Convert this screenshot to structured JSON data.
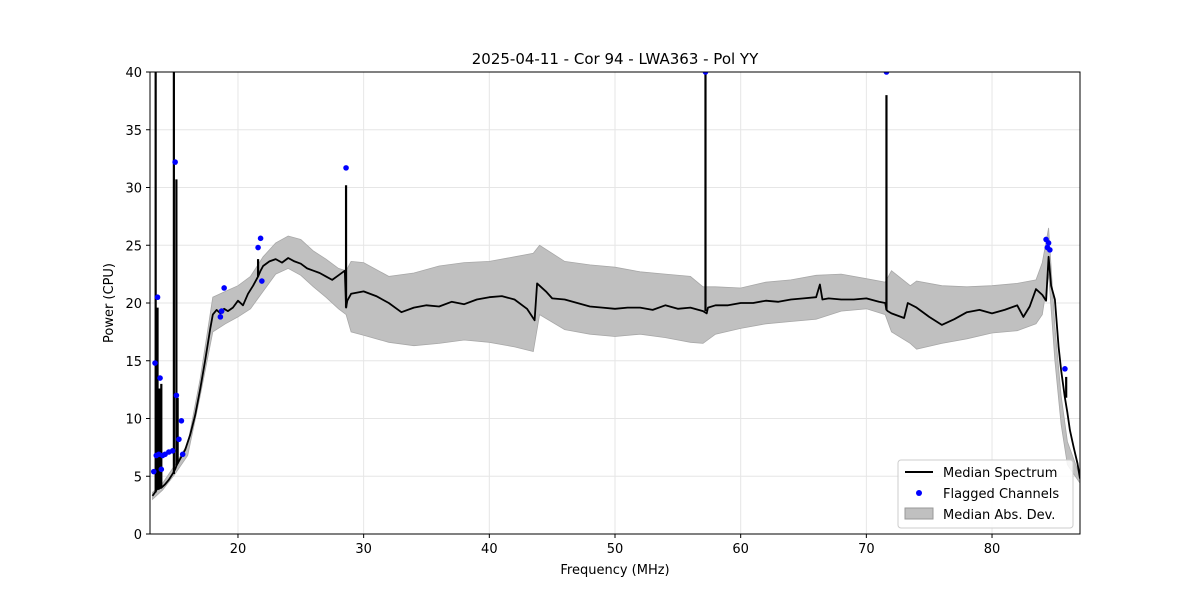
{
  "figure": {
    "title": "2025-04-11 - Cor 94 - LWA363 - Pol YY",
    "xlabel": "Frequency (MHz)",
    "ylabel": "Power (CPU)"
  },
  "legend": {
    "items": [
      {
        "key": "median",
        "label": "Median Spectrum"
      },
      {
        "key": "flagged",
        "label": "Flagged Channels"
      },
      {
        "key": "mad",
        "label": "Median Abs. Dev."
      }
    ]
  },
  "chart_data": {
    "type": "line",
    "title": "2025-04-11 - Cor 94 - LWA363 - Pol YY",
    "xlabel": "Frequency (MHz)",
    "ylabel": "Power (CPU)",
    "xlim": [
      13,
      87
    ],
    "ylim": [
      0,
      40
    ],
    "xticks": [
      20,
      30,
      40,
      50,
      60,
      70,
      80
    ],
    "yticks": [
      0,
      5,
      10,
      15,
      20,
      25,
      30,
      35,
      40
    ],
    "grid": true,
    "legend_position": "lower-right",
    "colors": {
      "median": "#000000",
      "flagged": "#0000ff",
      "mad": "#c0c0c0"
    },
    "series": [
      {
        "name": "Median Spectrum",
        "type": "line",
        "x": [
          13.2,
          13.4,
          13.5,
          13.6,
          13.7,
          13.8,
          13.9,
          14.0,
          14.2,
          14.5,
          14.8,
          15.0,
          15.1,
          15.2,
          15.3,
          15.5,
          15.8,
          16.2,
          16.6,
          17.0,
          17.4,
          17.8,
          18.0,
          18.3,
          18.6,
          18.9,
          19.2,
          19.6,
          20.0,
          20.4,
          20.8,
          21.2,
          21.6,
          21.8,
          22.0,
          22.5,
          23.0,
          23.5,
          24.0,
          24.5,
          25.0,
          25.5,
          26.0,
          26.5,
          27.0,
          27.5,
          28.0,
          28.5,
          28.6,
          28.7,
          29.0,
          30.0,
          31.0,
          32.0,
          33.0,
          34.0,
          35.0,
          36.0,
          37.0,
          38.0,
          39.0,
          40.0,
          41.0,
          42.0,
          43.0,
          43.6,
          43.8,
          44.5,
          45.0,
          46.0,
          47.0,
          48.0,
          49.0,
          50.0,
          51.0,
          52.0,
          53.0,
          54.0,
          55.0,
          56.0,
          57.0,
          57.3,
          57.4,
          58.0,
          59.0,
          60.0,
          61.0,
          62.0,
          63.0,
          64.0,
          65.0,
          66.0,
          66.3,
          66.5,
          67.0,
          68.0,
          69.0,
          70.0,
          71.0,
          71.5,
          71.6,
          71.7,
          72.0,
          73.0,
          73.3,
          74.0,
          75.0,
          76.0,
          77.0,
          78.0,
          79.0,
          80.0,
          81.0,
          82.0,
          82.5,
          83.0,
          83.5,
          84.0,
          84.3,
          84.5,
          84.7,
          85.0,
          85.3,
          85.5,
          85.8,
          86.0,
          86.2,
          86.5,
          86.8,
          87.0
        ],
        "y": [
          3.3,
          3.6,
          3.8,
          3.9,
          3.9,
          4.0,
          4.0,
          4.1,
          4.3,
          4.7,
          5.2,
          5.6,
          5.9,
          6.1,
          6.3,
          6.7,
          7.3,
          8.6,
          10.3,
          12.6,
          15.1,
          17.8,
          19.0,
          19.4,
          19.1,
          19.5,
          19.3,
          19.6,
          20.2,
          19.8,
          20.8,
          21.5,
          22.3,
          22.8,
          23.2,
          23.6,
          23.8,
          23.5,
          23.9,
          23.6,
          23.4,
          23.0,
          22.8,
          22.6,
          22.3,
          22.0,
          22.4,
          22.8,
          19.6,
          20.2,
          20.8,
          21.0,
          20.6,
          20.0,
          19.2,
          19.6,
          19.8,
          19.7,
          20.1,
          19.9,
          20.3,
          20.5,
          20.6,
          20.3,
          19.5,
          18.5,
          21.7,
          21.0,
          20.4,
          20.3,
          20.0,
          19.7,
          19.6,
          19.5,
          19.6,
          19.6,
          19.4,
          19.8,
          19.5,
          19.6,
          19.3,
          19.1,
          19.6,
          19.8,
          19.8,
          20.0,
          20.0,
          20.2,
          20.1,
          20.3,
          20.4,
          20.5,
          21.6,
          20.3,
          20.4,
          20.3,
          20.3,
          20.4,
          20.1,
          20.0,
          19.4,
          19.3,
          19.1,
          18.7,
          20.0,
          19.6,
          18.8,
          18.1,
          18.6,
          19.2,
          19.4,
          19.1,
          19.4,
          19.8,
          18.8,
          19.7,
          21.2,
          20.7,
          20.2,
          24.0,
          21.5,
          20.3,
          16.2,
          14.2,
          11.8,
          10.5,
          9.0,
          7.5,
          6.1,
          4.8
        ]
      },
      {
        "name": "Flagged Channels",
        "type": "scatter",
        "x": [
          13.3,
          13.4,
          13.5,
          13.6,
          13.7,
          13.8,
          13.9,
          14.0,
          14.2,
          14.5,
          14.8,
          15.0,
          15.1,
          15.3,
          15.5,
          15.6,
          18.6,
          18.7,
          18.9,
          21.6,
          21.8,
          21.9,
          28.6,
          57.2,
          71.6,
          84.3,
          84.4,
          84.5,
          84.6,
          85.8
        ],
        "y": [
          5.4,
          14.8,
          6.8,
          20.5,
          6.9,
          13.5,
          5.6,
          6.8,
          6.9,
          7.1,
          7.2,
          32.2,
          12.0,
          8.2,
          9.8,
          6.9,
          18.8,
          19.3,
          21.3,
          24.8,
          25.6,
          21.9,
          31.7,
          40.0,
          40.0,
          25.5,
          24.8,
          25.2,
          24.6,
          14.3
        ]
      },
      {
        "name": "Median Abs. Dev.",
        "type": "area",
        "x": [
          13.2,
          14.0,
          15.0,
          16.0,
          17.0,
          18.0,
          19.0,
          20.0,
          21.0,
          22.0,
          23.0,
          24.0,
          25.0,
          26.0,
          27.0,
          28.0,
          28.6,
          29.0,
          30.0,
          32.0,
          34.0,
          36.0,
          38.0,
          40.0,
          42.0,
          43.5,
          44.0,
          46.0,
          48.0,
          50.0,
          52.0,
          54.0,
          56.0,
          57.0,
          58.0,
          60.0,
          62.0,
          64.0,
          66.0,
          68.0,
          70.0,
          71.5,
          72.0,
          73.5,
          74.0,
          76.0,
          78.0,
          80.0,
          82.0,
          83.5,
          84.0,
          84.5,
          85.0,
          85.5,
          86.0,
          87.0
        ],
        "y_low": [
          3.0,
          3.8,
          5.2,
          6.8,
          12.0,
          17.5,
          18.2,
          18.8,
          19.5,
          21.0,
          22.5,
          23.0,
          22.4,
          21.4,
          20.5,
          19.5,
          19.0,
          17.5,
          17.2,
          16.6,
          16.3,
          16.5,
          16.8,
          16.6,
          16.2,
          15.8,
          19.0,
          17.7,
          17.3,
          17.1,
          17.3,
          17.0,
          16.6,
          16.5,
          17.3,
          17.8,
          18.2,
          18.4,
          18.6,
          19.3,
          19.5,
          19.0,
          17.5,
          16.5,
          16.0,
          16.5,
          16.9,
          17.4,
          17.6,
          18.2,
          19.0,
          22.5,
          15.0,
          9.5,
          6.0,
          4.4
        ],
        "y_high": [
          3.6,
          4.4,
          6.0,
          7.8,
          13.5,
          20.5,
          21.0,
          21.5,
          22.3,
          24.0,
          25.2,
          25.8,
          25.5,
          24.5,
          23.8,
          23.0,
          22.8,
          23.6,
          23.5,
          22.3,
          22.6,
          23.2,
          23.5,
          23.6,
          24.0,
          24.3,
          25.0,
          23.6,
          23.3,
          23.1,
          22.7,
          22.5,
          22.3,
          21.4,
          21.4,
          21.3,
          21.8,
          22.0,
          22.4,
          22.5,
          22.1,
          21.8,
          22.8,
          21.5,
          21.9,
          21.5,
          21.4,
          21.5,
          21.7,
          22.0,
          23.5,
          26.5,
          18.0,
          12.0,
          8.0,
          5.0
        ]
      }
    ],
    "spikes": [
      {
        "x": 13.45,
        "y": 40.0
      },
      {
        "x": 13.6,
        "y": 19.6
      },
      {
        "x": 13.75,
        "y": 12.6
      },
      {
        "x": 13.9,
        "y": 13.0
      },
      {
        "x": 14.9,
        "y": 40.0
      },
      {
        "x": 15.1,
        "y": 30.7
      },
      {
        "x": 15.2,
        "y": 11.8
      },
      {
        "x": 21.6,
        "y": 23.8
      },
      {
        "x": 28.6,
        "y": 30.2
      },
      {
        "x": 57.2,
        "y": 40.0
      },
      {
        "x": 71.6,
        "y": 38.0
      },
      {
        "x": 85.9,
        "y": 13.6
      }
    ]
  }
}
